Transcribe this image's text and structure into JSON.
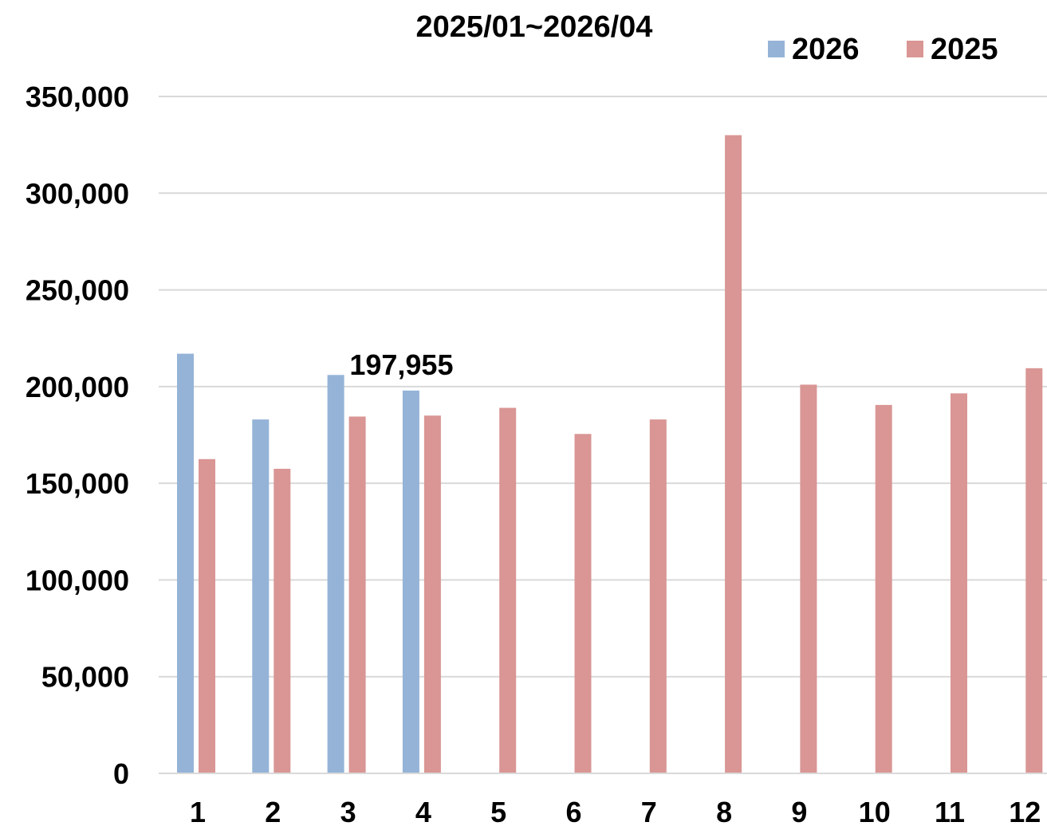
{
  "chart_data": {
    "type": "bar",
    "title": "2025/01~2026/04",
    "xlabel": "",
    "ylabel": "",
    "categories": [
      "1",
      "2",
      "3",
      "4",
      "5",
      "6",
      "7",
      "8",
      "9",
      "10",
      "11",
      "12"
    ],
    "series": [
      {
        "name": "2026",
        "color": "#95b3d7",
        "values": [
          217000,
          183000,
          206000,
          197955,
          null,
          null,
          null,
          null,
          null,
          null,
          null,
          null
        ]
      },
      {
        "name": "2025",
        "color": "#d99694",
        "values": [
          162500,
          157500,
          184500,
          185000,
          189000,
          175500,
          183000,
          330000,
          201000,
          190500,
          196500,
          209500
        ]
      }
    ],
    "ylim": [
      0,
      350000
    ],
    "yticks": [
      0,
      50000,
      100000,
      150000,
      200000,
      250000,
      300000,
      350000
    ],
    "ytick_labels": [
      "0",
      "50,000",
      "100,000",
      "150,000",
      "200,000",
      "250,000",
      "300,000",
      "350,000"
    ],
    "grid": true,
    "gridline_color": "#d9d9d9",
    "legend_position": "top-right",
    "data_labels": [
      {
        "series": "2026",
        "category": "4",
        "text": "197,955"
      }
    ]
  }
}
